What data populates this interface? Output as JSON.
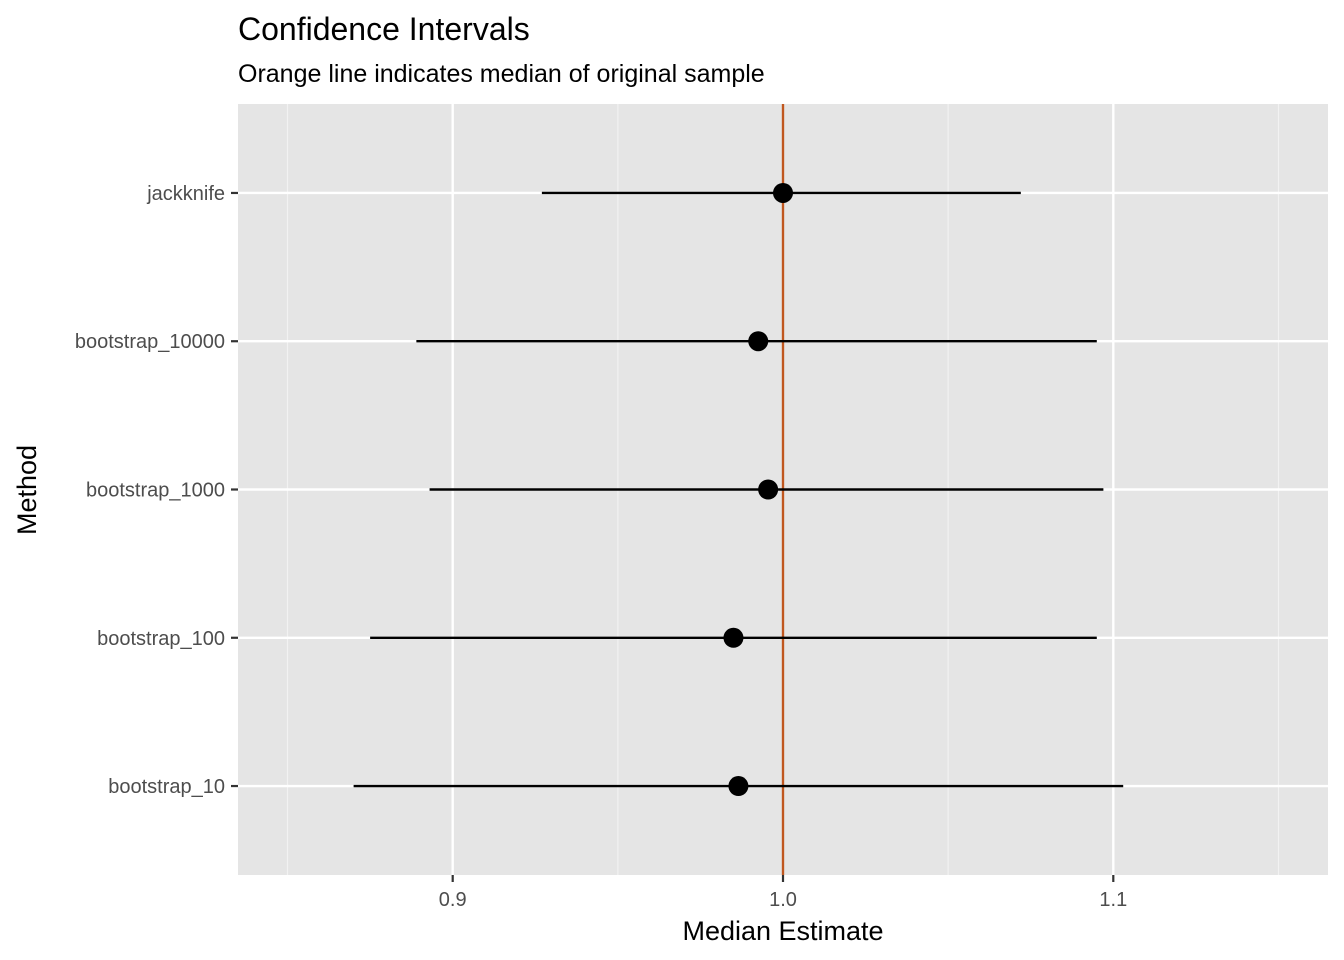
{
  "chart_data": {
    "type": "pointrange",
    "title": "Confidence Intervals",
    "subtitle": "Orange line indicates median of original sample",
    "xlabel": "Median Estimate",
    "ylabel": "Method",
    "xlim": [
      0.835,
      1.165
    ],
    "x_ticks": [
      0.9,
      1.0,
      1.1
    ],
    "x_tick_labels": [
      "0.9",
      "1.0",
      "1.1"
    ],
    "x_minor_ticks": [
      0.85,
      0.95,
      1.05,
      1.15
    ],
    "categories": [
      "jackknife",
      "bootstrap_10000",
      "bootstrap_1000",
      "bootstrap_100",
      "bootstrap_10"
    ],
    "estimates": [
      1.0,
      0.9925,
      0.9955,
      0.985,
      0.9865
    ],
    "lower": [
      0.927,
      0.889,
      0.893,
      0.875,
      0.87
    ],
    "upper": [
      1.072,
      1.095,
      1.097,
      1.095,
      1.103
    ],
    "reference_line": {
      "value": 1.0,
      "color": "#C0571F"
    },
    "grid": true,
    "colors": {
      "panel_background": "#E5E5E5",
      "grid_major": "#FFFFFF",
      "grid_minor": "#F2F2F2",
      "points": "#000000",
      "tick_label": "#4D4D4D"
    }
  }
}
